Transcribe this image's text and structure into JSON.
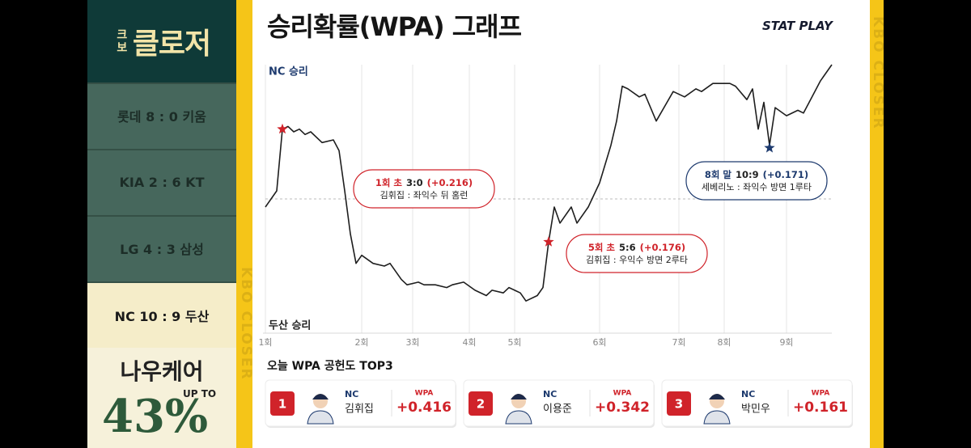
{
  "sidebar": {
    "logo_small": "크보",
    "logo": "클로저",
    "scores": [
      "롯데 8 : 0 키움",
      "KIA 2 : 6 KT",
      "LG 4 : 3 삼성",
      "NC 10 : 9 두산"
    ],
    "ad": {
      "title": "나우케어",
      "prefix": "UP TO",
      "value": "43%"
    }
  },
  "side_text": "KBO CLOSER",
  "header": {
    "title": "승리확률(WPA) 그래프",
    "brand": "STAT PLAY"
  },
  "chart_data": {
    "type": "line",
    "y_top_label": "NC 승리",
    "y_bottom_label": "두산 승리",
    "color": "#1e1e1e",
    "reference_line": 50,
    "x": [
      0,
      2,
      3,
      4,
      5,
      6,
      7,
      8,
      10,
      12,
      13,
      14,
      15,
      16,
      17,
      19,
      21,
      22,
      24,
      25,
      27,
      28,
      30,
      32,
      33,
      35,
      37,
      39,
      40,
      42,
      43,
      45,
      46,
      48,
      49,
      50,
      51,
      52,
      54,
      55,
      57,
      59,
      61,
      62,
      63,
      64,
      66,
      67,
      69,
      72,
      74,
      76,
      77,
      79,
      82,
      83,
      85,
      86,
      87,
      88,
      89,
      90,
      92,
      94,
      95,
      96,
      98,
      100
    ],
    "values": [
      47,
      53,
      76,
      77,
      75,
      76,
      74,
      75,
      71,
      72,
      68,
      53,
      37,
      26,
      29,
      26,
      25,
      26,
      20,
      18,
      19,
      18,
      18,
      17,
      18,
      19,
      16,
      14,
      16,
      15,
      17,
      15,
      12,
      14,
      17,
      34,
      47,
      41,
      47,
      41,
      47,
      56,
      70,
      79,
      92,
      91,
      88,
      89,
      79,
      90,
      88,
      91,
      90,
      93,
      93,
      92,
      87,
      91,
      76,
      86,
      70,
      84,
      81,
      83,
      82,
      86,
      94,
      100
    ],
    "xlim": [
      0,
      100
    ],
    "ylim": [
      0,
      100
    ],
    "xticks": [
      {
        "value": 0,
        "label": "1회"
      },
      {
        "value": 17,
        "label": "2회"
      },
      {
        "value": 26,
        "label": "3회"
      },
      {
        "value": 36,
        "label": "4회"
      },
      {
        "value": 44,
        "label": "5회"
      },
      {
        "value": 59,
        "label": "6회"
      },
      {
        "value": 73,
        "label": "7회"
      },
      {
        "value": 81,
        "label": "8회"
      },
      {
        "value": 92,
        "label": "9회"
      }
    ],
    "annotations": [
      {
        "inning": "1회 초",
        "score": "3:0",
        "wpa": "(+0.216)",
        "desc": "김휘집 : 좌익수 뒤 홈런",
        "color": "#d0232a",
        "x": 3,
        "y": 76
      },
      {
        "inning": "5회 초",
        "score": "5:6",
        "wpa": "(+0.176)",
        "desc": "김휘집 : 우익수 방면 2루타",
        "color": "#d0232a",
        "x": 50,
        "y": 34
      },
      {
        "inning": "8회 말",
        "score": "10:9",
        "wpa": "(+0.171)",
        "desc": "세베리노 : 좌익수 방면 1루타",
        "color": "#1d3a6e",
        "x": 89,
        "y": 69
      }
    ]
  },
  "top3": {
    "title": "오늘 WPA 공헌도 TOP3",
    "players": [
      {
        "rank": 1,
        "team": "NC",
        "name": "김휘집",
        "metric": "WPA",
        "value": "+0.416"
      },
      {
        "rank": 2,
        "team": "NC",
        "name": "이용준",
        "metric": "WPA",
        "value": "+0.342"
      },
      {
        "rank": 3,
        "team": "NC",
        "name": "박민우",
        "metric": "WPA",
        "value": "+0.161"
      }
    ]
  }
}
